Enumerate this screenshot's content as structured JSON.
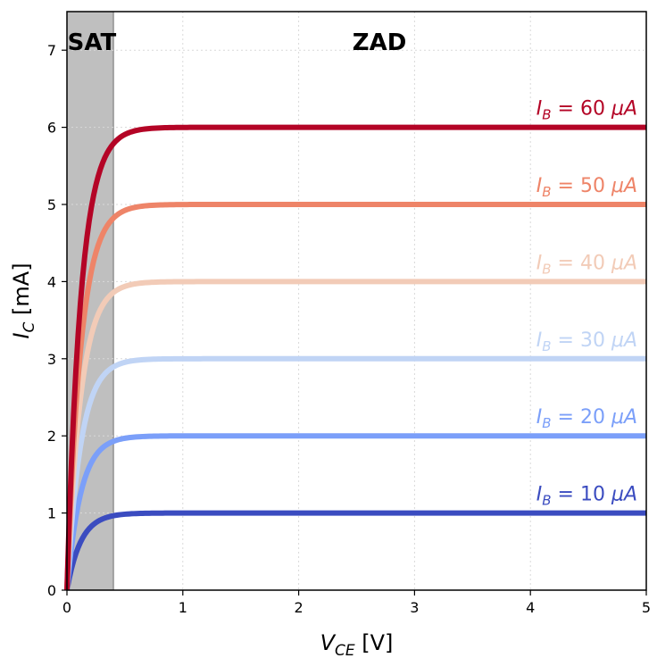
{
  "chart_data": {
    "type": "line",
    "xlabel_main": "V",
    "xlabel_sub": "CE",
    "xlabel_unit": " [V]",
    "ylabel_main": "I",
    "ylabel_sub": "C",
    "ylabel_unit": " [mA]",
    "xlim": [
      0,
      5
    ],
    "ylim": [
      0,
      7.5
    ],
    "x_ticks": [
      0,
      1,
      2,
      3,
      4,
      5
    ],
    "y_ticks": [
      0,
      1,
      2,
      3,
      4,
      5,
      6,
      7
    ],
    "grid": true,
    "saturation_region": {
      "label": "SAT",
      "x_start": 0,
      "x_end": 0.4,
      "color": "#bfbfbf"
    },
    "active_region": {
      "label": "ZAD"
    },
    "curve_label_prefix": "I",
    "curve_label_sub": "B",
    "series": [
      {
        "name": "IB = 10 µA",
        "ib_value": "= 10 ",
        "ib_unit": "μA",
        "ic_sat": 1,
        "color": "#3b4cc0"
      },
      {
        "name": "IB = 20 µA",
        "ib_value": "= 20 ",
        "ib_unit": "μA",
        "ic_sat": 2,
        "color": "#7b9ff9"
      },
      {
        "name": "IB = 30 µA",
        "ib_value": "= 30 ",
        "ib_unit": "μA",
        "ic_sat": 3,
        "color": "#c0d4f5"
      },
      {
        "name": "IB = 40 µA",
        "ib_value": "= 40 ",
        "ib_unit": "μA",
        "ic_sat": 4,
        "color": "#f2cbb7"
      },
      {
        "name": "IB = 50 µA",
        "ib_value": "= 50 ",
        "ib_unit": "μA",
        "ic_sat": 5,
        "color": "#ee8468"
      },
      {
        "name": "IB = 60 µA",
        "ib_value": "= 60 ",
        "ib_unit": "μA",
        "ic_sat": 6,
        "color": "#b40426"
      }
    ],
    "curve_shape": {
      "model": "ic_sat * (1 - exp(-vce / vt))",
      "vt": 0.12
    }
  }
}
